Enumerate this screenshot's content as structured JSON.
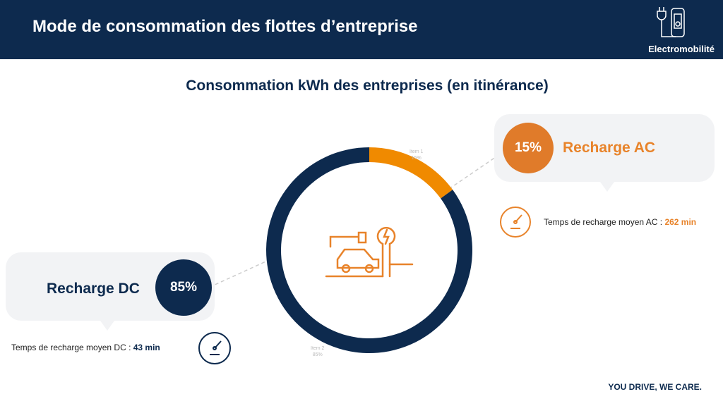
{
  "header": {
    "title": "Mode de consommation des flottes d’entreprise",
    "brand": "Electromobilité"
  },
  "subtitle": "Consommation kWh des entreprises (en itinérance)",
  "chart_data": {
    "type": "pie",
    "donut": true,
    "categories": [
      "Item 1",
      "Item 2"
    ],
    "values": [
      15,
      85
    ],
    "value_labels": [
      "15%",
      "85%"
    ],
    "colors": [
      "#f08a00",
      "#0d2a4e"
    ]
  },
  "ac": {
    "percent": "15%",
    "label": "Recharge AC",
    "time_label": "Temps de recharge moyen AC  :",
    "time_value": "262 min",
    "color": "#e8832a"
  },
  "dc": {
    "percent": "85%",
    "label": "Recharge DC",
    "time_label": "Temps de recharge moyen DC :",
    "time_value": "43 min",
    "color": "#0d2a4e"
  },
  "footer": {
    "tagline": "YOU DRIVE, WE CARE."
  }
}
